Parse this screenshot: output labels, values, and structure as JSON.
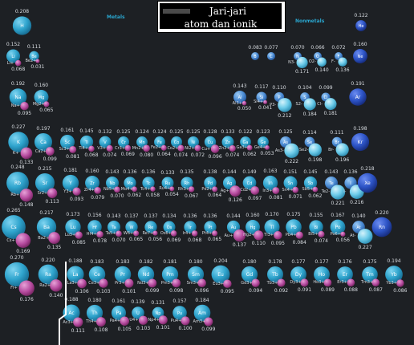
{
  "title": {
    "line1": "Jari-jari",
    "line2": "atom dan ionik"
  },
  "captions": {
    "metals": "Metals",
    "nonmetals": "Nonmetals"
  },
  "colors": {
    "atom": "#2fa4cd",
    "atom_dark": "#1f7ca6",
    "nonmetal_atom": "#4f99dc",
    "noble": "#2d54c6",
    "ion": "#bb4fa6",
    "nonmetal_ion": "#5ec7e8",
    "background": "#1d2024"
  },
  "elements": [
    {
      "s": "H",
      "c": 27.5,
      "r": 1,
      "ar": 0.208,
      "i": "",
      "ir": null
    },
    {
      "s": "Li",
      "c": 16.5,
      "r": 2,
      "ar": 0.152,
      "i": "Li+",
      "ir": 0.068
    },
    {
      "s": "Be",
      "c": 42.5,
      "r": 2,
      "ar": 0.111,
      "i": "Be2+",
      "ir": 0.031
    },
    {
      "s": "Na",
      "c": 22.5,
      "r": 3,
      "ar": 0.192,
      "i": "Na+",
      "ir": 0.095
    },
    {
      "s": "Mg",
      "c": 51.5,
      "r": 3,
      "ar": 0.16,
      "i": "Mg2+",
      "ir": 0.065
    },
    {
      "s": "K",
      "c": 23,
      "r": 4,
      "ar": 0.227,
      "i": "K+",
      "ir": 0.133
    },
    {
      "s": "Ca",
      "c": 54,
      "r": 4,
      "ar": 0.197,
      "i": "Ca2+",
      "ir": 0.099
    },
    {
      "s": "Sc",
      "c": 84,
      "r": 4,
      "ar": 0.161,
      "i": "Sc3+",
      "ir": 0.081
    },
    {
      "s": "Ti",
      "c": 108,
      "r": 4,
      "ar": 0.145,
      "i": "Ti4+",
      "ir": 0.068
    },
    {
      "s": "V",
      "c": 131,
      "r": 4,
      "ar": 0.132,
      "i": "V3+",
      "ir": 0.074
    },
    {
      "s": "Cr",
      "c": 154,
      "r": 4,
      "ar": 0.125,
      "i": "Cr3+",
      "ir": 0.069
    },
    {
      "s": "Mn",
      "c": 177,
      "r": 4,
      "ar": 0.124,
      "i": "Mn2+",
      "ir": 0.08
    },
    {
      "s": "Fe",
      "c": 199,
      "r": 4,
      "ar": 0.124,
      "i": "Fe2+",
      "ir": 0.064
    },
    {
      "s": "Co",
      "c": 220,
      "r": 4,
      "ar": 0.125,
      "i": "Co2+",
      "ir": 0.074
    },
    {
      "s": "Ni",
      "c": 241,
      "r": 4,
      "ar": 0.125,
      "i": "Ni2+",
      "ir": 0.072
    },
    {
      "s": "Cu",
      "c": 262,
      "r": 4,
      "ar": 0.128,
      "i": "Cu+",
      "ir": 0.096
    },
    {
      "s": "Zn",
      "c": 284,
      "r": 4,
      "ar": 0.133,
      "i": "Zn2+",
      "ir": 0.074
    },
    {
      "s": "Ga",
      "c": 306,
      "r": 4,
      "ar": 0.122,
      "i": "Ga3+",
      "ir": 0.062
    },
    {
      "s": "Ge",
      "c": 328,
      "r": 4,
      "ar": 0.123,
      "i": "Ge4+",
      "ir": 0.053
    },
    {
      "s": "Rb",
      "c": 22,
      "r": 5,
      "ar": 0.248,
      "i": "Rb+",
      "ir": 0.148
    },
    {
      "s": "Sr",
      "c": 56,
      "r": 5,
      "ar": 0.215,
      "i": "Sr2+",
      "ir": 0.113
    },
    {
      "s": "Y",
      "c": 88,
      "r": 5,
      "ar": 0.181,
      "i": "Y3+",
      "ir": 0.093
    },
    {
      "s": "Zr",
      "c": 115,
      "r": 5,
      "ar": 0.16,
      "i": "Zr4+",
      "ir": 0.079
    },
    {
      "s": "Nb",
      "c": 140,
      "r": 5,
      "ar": 0.143,
      "i": "Nb5+",
      "ir": 0.07
    },
    {
      "s": "Mo",
      "c": 162,
      "r": 5,
      "ar": 0.136,
      "i": "Mo4+",
      "ir": 0.062
    },
    {
      "s": "Tc",
      "c": 185,
      "r": 5,
      "ar": 0.136,
      "i": "Tc4+",
      "ir": 0.058
    },
    {
      "s": "Ru",
      "c": 209,
      "r": 5,
      "ar": 0.133,
      "i": "Ru4+",
      "ir": 0.054
    },
    {
      "s": "Rh",
      "c": 233,
      "r": 5,
      "ar": 0.135,
      "i": "Rh3+",
      "ir": 0.067
    },
    {
      "s": "Pd",
      "c": 262,
      "r": 5,
      "ar": 0.138,
      "i": "Pd2+",
      "ir": 0.064
    },
    {
      "s": "Ag",
      "c": 286,
      "r": 5,
      "ar": 0.144,
      "i": "Ag+",
      "ir": 0.126
    },
    {
      "s": "Cd",
      "c": 311,
      "r": 5,
      "ar": 0.149,
      "i": "Cd2+",
      "ir": 0.097
    },
    {
      "s": "In",
      "c": 337,
      "r": 5,
      "ar": 0.163,
      "i": "In3+",
      "ir": 0.081
    },
    {
      "s": "Sn",
      "c": 362,
      "r": 5,
      "ar": 0.151,
      "i": "Sn4+",
      "ir": 0.071
    },
    {
      "s": "Sb",
      "c": 387,
      "r": 5,
      "ar": 0.145,
      "i": "Sb5+",
      "ir": 0.062
    },
    {
      "s": "Cs",
      "c": 17,
      "r": 6,
      "ar": 0.265,
      "i": "Cs+",
      "ir": 0.169
    },
    {
      "s": "Ba",
      "c": 58,
      "r": 6,
      "ar": 0.217,
      "i": "Ba2+",
      "ir": 0.135
    },
    {
      "s": "Lu",
      "c": 91,
      "r": 6,
      "ar": 0.173,
      "i": "Lu3+",
      "ir": 0.085
    },
    {
      "s": "Hf",
      "c": 118,
      "r": 6,
      "ar": 0.156,
      "i": "Hf4+",
      "ir": 0.078
    },
    {
      "s": "Ta",
      "c": 142,
      "r": 6,
      "ar": 0.143,
      "i": "Ta5+",
      "ir": 0.07
    },
    {
      "s": "W",
      "c": 164,
      "r": 6,
      "ar": 0.137,
      "i": "W6+",
      "ir": 0.065
    },
    {
      "s": "Re",
      "c": 188,
      "r": 6,
      "ar": 0.137,
      "i": "Re7+",
      "ir": 0.056
    },
    {
      "s": "Os",
      "c": 211,
      "r": 6,
      "ar": 0.134,
      "i": "Os6+",
      "ir": 0.069
    },
    {
      "s": "Ir",
      "c": 237,
      "r": 6,
      "ar": 0.136,
      "i": "Ir4+",
      "ir": 0.068
    },
    {
      "s": "Pt",
      "c": 262,
      "r": 6,
      "ar": 0.136,
      "i": "Pt4+",
      "ir": 0.065
    },
    {
      "s": "Au",
      "c": 291,
      "r": 6,
      "ar": 0.144,
      "i": "Au+",
      "ir": 0.137
    },
    {
      "s": "Hg",
      "c": 315,
      "r": 6,
      "ar": 0.16,
      "i": "Hg2+",
      "ir": 0.11
    },
    {
      "s": "Tl",
      "c": 339,
      "r": 6,
      "ar": 0.17,
      "i": "Tl3+",
      "ir": 0.095
    },
    {
      "s": "Pb",
      "c": 366,
      "r": 6,
      "ar": 0.175,
      "i": "Pb4+",
      "ir": 0.084
    },
    {
      "s": "Bi",
      "c": 394,
      "r": 6,
      "ar": 0.155,
      "i": "Bi5+",
      "ir": 0.074
    },
    {
      "s": "Po",
      "c": 421,
      "r": 6,
      "ar": 0.167,
      "i": "Po6+",
      "ir": 0.056
    },
    {
      "s": "Fr",
      "c": 21,
      "r": 7,
      "ar": 0.27,
      "i": "Fr+",
      "ir": 0.176
    },
    {
      "s": "Ra",
      "c": 60,
      "r": 7,
      "ar": 0.22,
      "i": "Ra2+",
      "ir": 0.14
    },
    {
      "s": "La",
      "c": 94,
      "r": 8,
      "ar": 0.188,
      "i": "La3+",
      "ir": 0.106
    },
    {
      "s": "Ce",
      "c": 121,
      "r": 8,
      "ar": 0.183,
      "i": "Ce3+",
      "ir": 0.103
    },
    {
      "s": "Pr",
      "c": 153,
      "r": 8,
      "ar": 0.183,
      "i": "Pr3+",
      "ir": 0.101
    },
    {
      "s": "Nd",
      "c": 182,
      "r": 8,
      "ar": 0.182,
      "i": "Nd3+",
      "ir": 0.099
    },
    {
      "s": "Pm",
      "c": 212,
      "r": 8,
      "ar": 0.181,
      "i": "Pm3+",
      "ir": 0.098
    },
    {
      "s": "Sm",
      "c": 244,
      "r": 8,
      "ar": 0.18,
      "i": "Sm3+",
      "ir": 0.096
    },
    {
      "s": "Eu",
      "c": 275,
      "r": 8,
      "ar": 0.204,
      "i": "Eu3+",
      "ir": 0.095
    },
    {
      "s": "Gd",
      "c": 311,
      "r": 8,
      "ar": 0.18,
      "i": "Gd3+",
      "ir": 0.094
    },
    {
      "s": "Tb",
      "c": 343,
      "r": 8,
      "ar": 0.178,
      "i": "Tb3+",
      "ir": 0.092
    },
    {
      "s": "Dy",
      "c": 372,
      "r": 8,
      "ar": 0.177,
      "i": "Dy3+",
      "ir": 0.091
    },
    {
      "s": "Ho",
      "c": 401,
      "r": 8,
      "ar": 0.177,
      "i": "Ho3+",
      "ir": 0.089
    },
    {
      "s": "Er",
      "c": 430,
      "r": 8,
      "ar": 0.176,
      "i": "Er3+",
      "ir": 0.088
    },
    {
      "s": "Tm",
      "c": 461,
      "r": 8,
      "ar": 0.175,
      "i": "Tm3+",
      "ir": 0.087
    },
    {
      "s": "Yb",
      "c": 491,
      "r": 8,
      "ar": 0.194,
      "i": "Yb3+",
      "ir": 0.086
    },
    {
      "s": "Ac",
      "c": 89,
      "r": 9,
      "ar": 0.188,
      "i": "Ac3+",
      "ir": 0.111
    },
    {
      "s": "Th",
      "c": 118,
      "r": 9,
      "ar": 0.18,
      "i": "Th4+",
      "ir": 0.108
    },
    {
      "s": "Pa",
      "c": 148,
      "r": 9,
      "ar": 0.161,
      "i": "Pa4+",
      "ir": 0.105
    },
    {
      "s": "U",
      "c": 172,
      "r": 9,
      "ar": 0.139,
      "i": "U4+",
      "ir": 0.103
    },
    {
      "s": "Np",
      "c": 197,
      "r": 9,
      "ar": 0.131,
      "i": "Np4+",
      "ir": 0.101
    },
    {
      "s": "Pu",
      "c": 224,
      "r": 9,
      "ar": 0.157,
      "i": "Pu4+",
      "ir": 0.1
    },
    {
      "s": "Am",
      "c": 252,
      "r": 9,
      "ar": 0.184,
      "i": "Am3+",
      "ir": 0.099
    }
  ],
  "nonmetals": [
    {
      "s": "He",
      "c": 450,
      "r": 1,
      "ar": 0.122,
      "i": "",
      "ir": null
    },
    {
      "s": "B",
      "c": 318,
      "r": 2,
      "ar": 0.083,
      "i": "",
      "ir": null
    },
    {
      "s": "C",
      "c": 338,
      "r": 2,
      "ar": 0.077,
      "i": "",
      "ir": null
    },
    {
      "s": "N",
      "c": 371,
      "r": 2,
      "ar": 0.07,
      "i": "N3-",
      "ir": 0.171
    },
    {
      "s": "O",
      "c": 396,
      "r": 2,
      "ar": 0.066,
      "i": "O2-",
      "ir": 0.14
    },
    {
      "s": "F",
      "c": 422,
      "r": 2,
      "ar": 0.072,
      "i": "F-",
      "ir": 0.136
    },
    {
      "s": "Ne",
      "c": 449,
      "r": 2,
      "ar": 0.16,
      "i": "",
      "ir": null
    },
    {
      "s": "Al",
      "c": 299,
      "r": 3,
      "ar": 0.143,
      "i": "Al3+",
      "ir": 0.05
    },
    {
      "s": "Si",
      "c": 326,
      "r": 3,
      "ar": 0.117,
      "i": "Si4+",
      "ir": 0.041
    },
    {
      "s": "P",
      "c": 348,
      "r": 3,
      "ar": 0.11,
      "i": "P3-",
      "ir": 0.212
    },
    {
      "s": "S",
      "c": 380,
      "r": 3,
      "ar": 0.104,
      "i": "S2-",
      "ir": 0.184
    },
    {
      "s": "Cl",
      "c": 406,
      "r": 3,
      "ar": 0.099,
      "i": "Cl-",
      "ir": 0.181
    },
    {
      "s": "Ar",
      "c": 446,
      "r": 3,
      "ar": 0.191,
      "i": "",
      "ir": null
    },
    {
      "s": "As",
      "c": 356,
      "r": 4,
      "ar": 0.125,
      "i": "As3-",
      "ir": 0.222
    },
    {
      "s": "Se",
      "c": 386,
      "r": 4,
      "ar": 0.114,
      "i": "Se2-",
      "ir": 0.198
    },
    {
      "s": "Br",
      "c": 420,
      "r": 4,
      "ar": 0.111,
      "i": "Br-",
      "ir": 0.196
    },
    {
      "s": "Kr",
      "c": 449,
      "r": 4,
      "ar": 0.198,
      "i": "",
      "ir": null
    },
    {
      "s": "Te",
      "c": 413,
      "r": 5,
      "ar": 0.143,
      "i": "Te2-",
      "ir": 0.221
    },
    {
      "s": "I",
      "c": 437,
      "r": 5,
      "ar": 0.136,
      "i": "I-",
      "ir": 0.216
    },
    {
      "s": "Xe",
      "c": 458,
      "r": 5,
      "ar": 0.218,
      "i": "",
      "ir": null
    },
    {
      "s": "At",
      "c": 447,
      "r": 6,
      "ar": 0.14,
      "i": "At-",
      "ir": 0.227
    },
    {
      "s": "Rn",
      "c": 476,
      "r": 6,
      "ar": 0.22,
      "i": "",
      "ir": null
    }
  ]
}
